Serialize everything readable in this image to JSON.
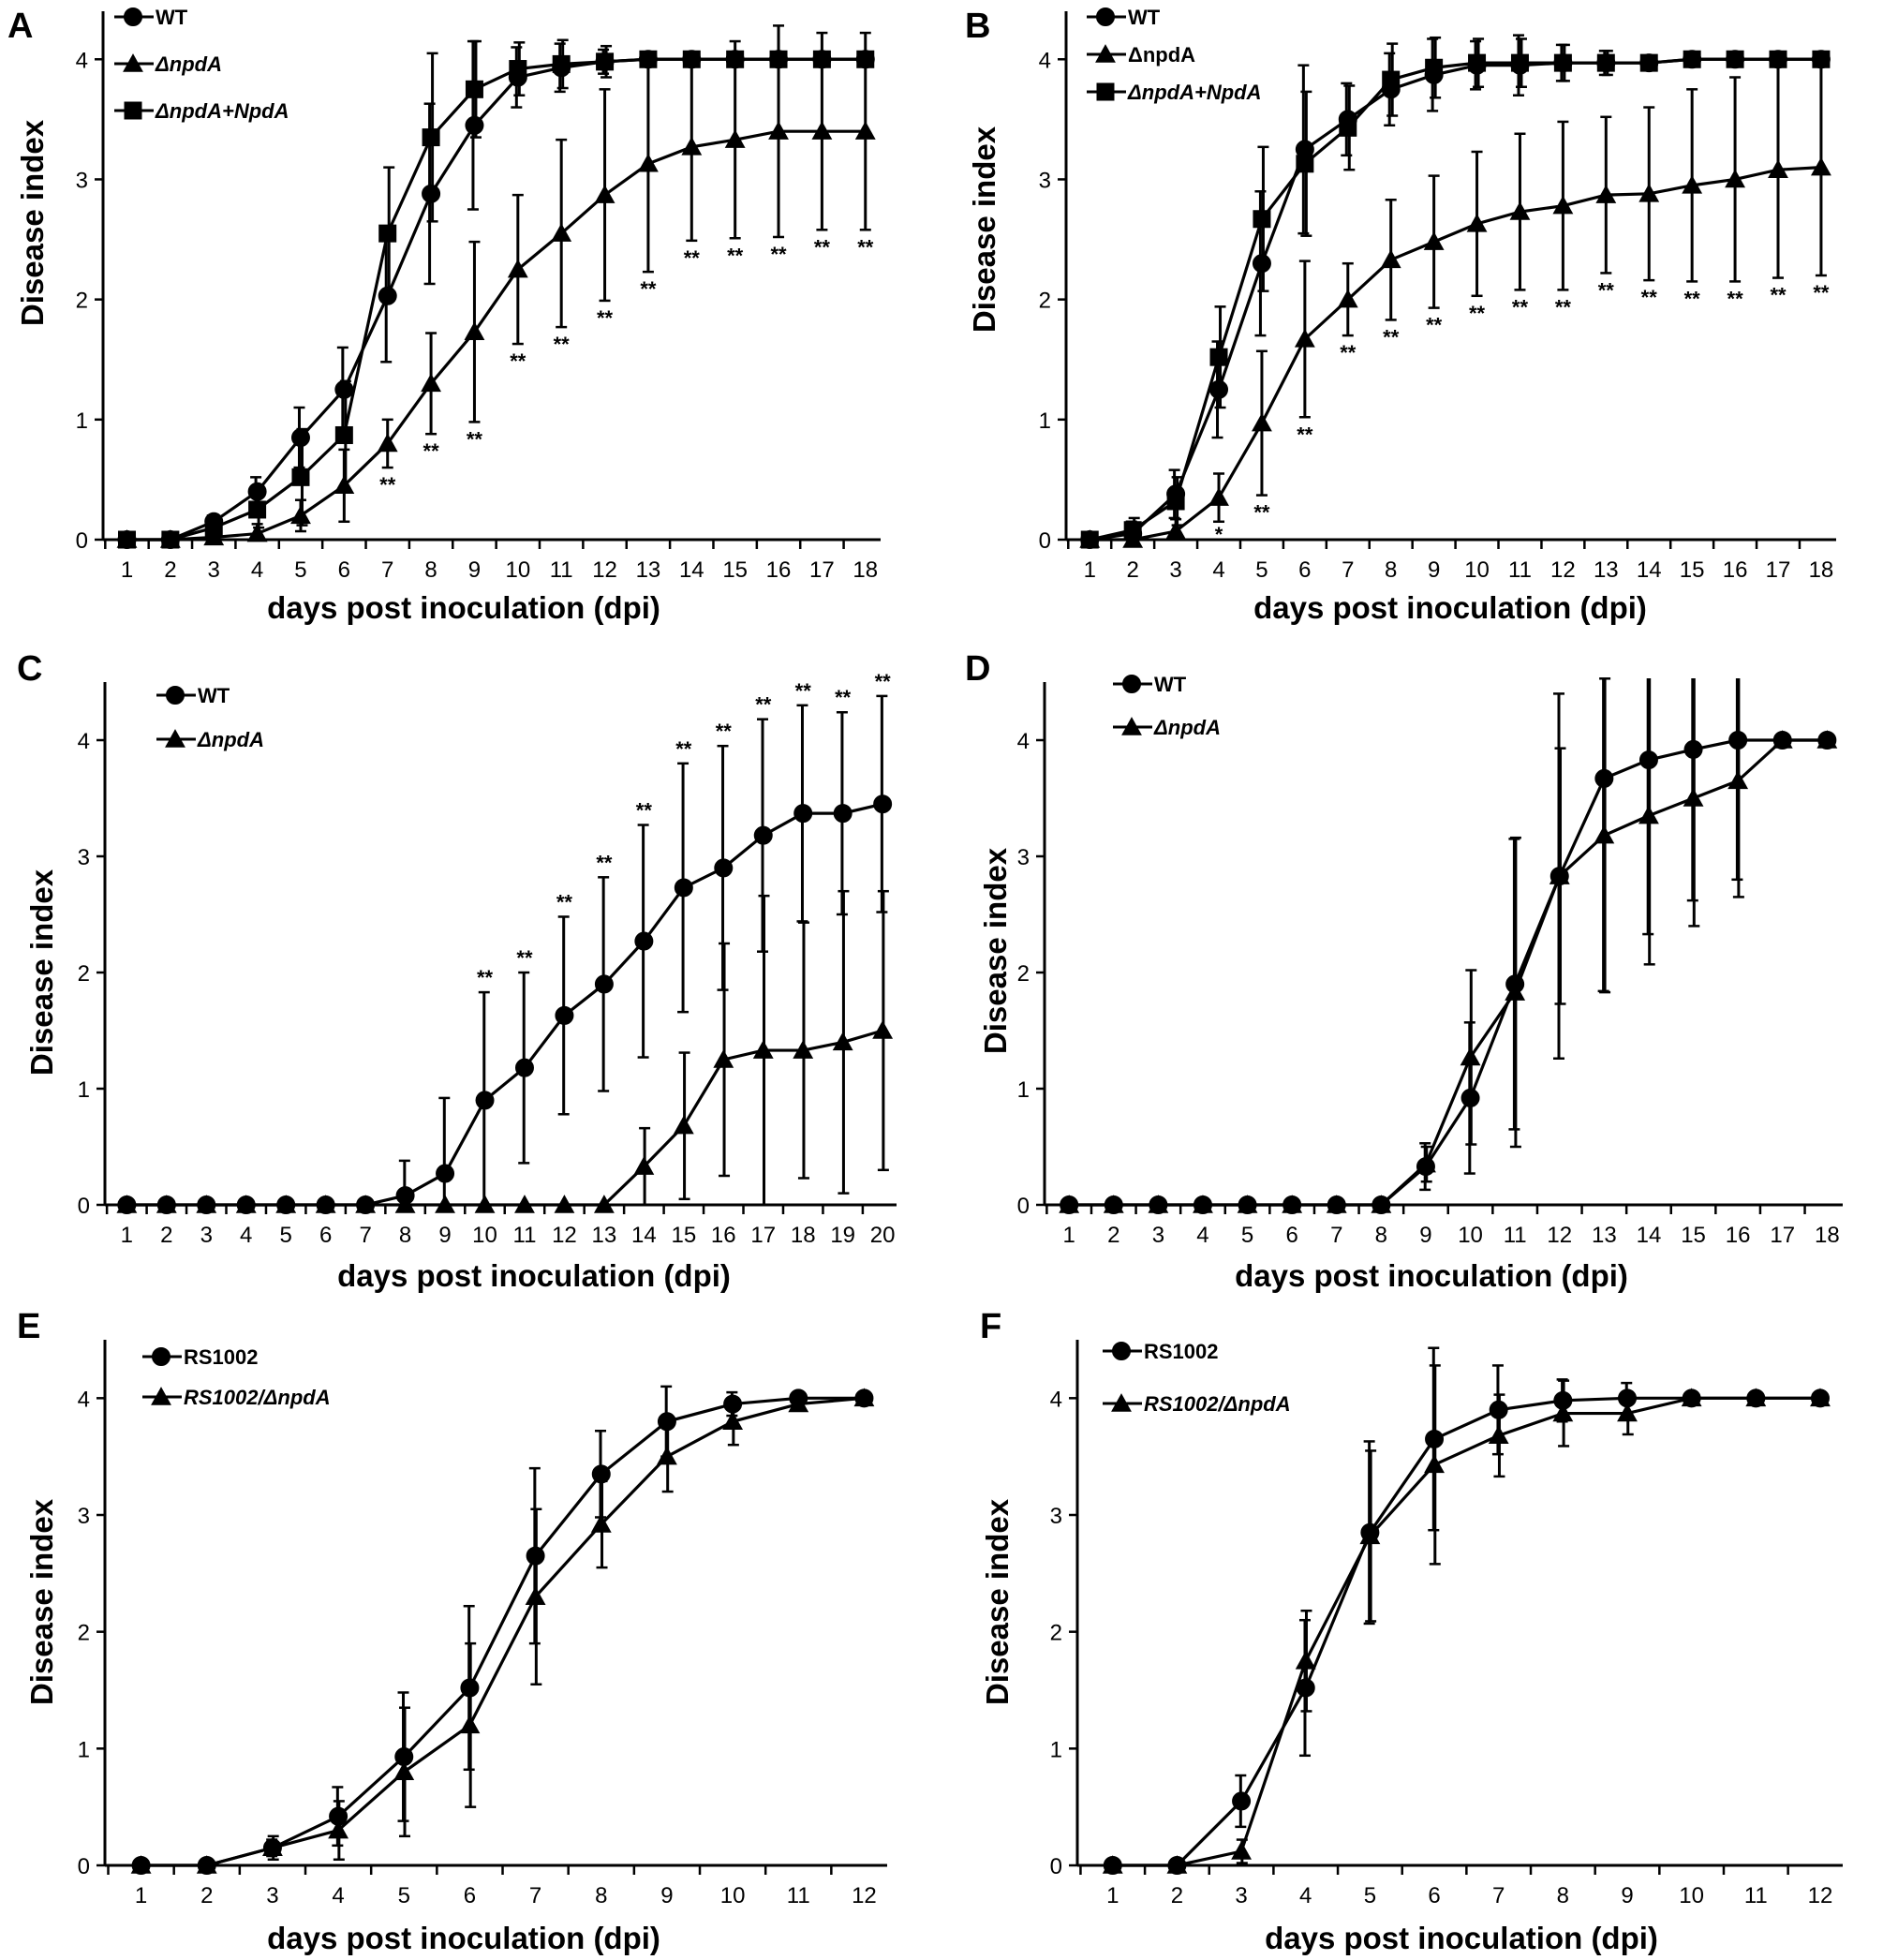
{
  "figure": {
    "axis_xlabel": "days post inoculation (dpi)",
    "axis_ylabel": "Disease index",
    "color": "#000000"
  },
  "chart_data": [
    {
      "panel": "A",
      "type": "line",
      "title": "",
      "xlabel": "days post inoculation (dpi)",
      "ylabel": "Disease index",
      "x": [
        1,
        2,
        3,
        4,
        5,
        6,
        7,
        8,
        9,
        10,
        11,
        12,
        13,
        14,
        15,
        16,
        17,
        18
      ],
      "xlim": [
        1,
        18
      ],
      "ylim": [
        0,
        4.4
      ],
      "yticks": [
        0,
        1,
        2,
        3,
        4
      ],
      "legend_position": "top-left",
      "series": [
        {
          "name": "WT",
          "italic": false,
          "marker": "circle",
          "values": [
            0,
            0,
            0.15,
            0.4,
            0.85,
            1.25,
            2.03,
            2.88,
            3.45,
            3.85,
            3.93,
            3.98,
            4,
            4,
            4,
            4,
            4,
            4
          ],
          "errors": [
            0,
            0,
            0.05,
            0.12,
            0.25,
            0.35,
            0.55,
            0.75,
            0.7,
            0.25,
            0.2,
            0.1,
            0,
            0,
            0,
            0,
            0,
            0
          ]
        },
        {
          "name": "ΔnpdA",
          "italic": true,
          "marker": "triangle",
          "values": [
            0,
            0,
            0.02,
            0.05,
            0.2,
            0.45,
            0.8,
            1.3,
            1.73,
            2.25,
            2.55,
            2.87,
            3.13,
            3.27,
            3.33,
            3.4,
            3.4,
            3.4
          ],
          "errors": [
            0,
            0,
            0.03,
            0.08,
            0.13,
            0.3,
            0.2,
            0.42,
            0.75,
            0.62,
            0.78,
            0.88,
            0.9,
            0.78,
            0.82,
            0.88,
            0.82,
            0.82
          ]
        },
        {
          "name": "ΔnpdA+NpdA",
          "italic": true,
          "marker": "square",
          "values": [
            0,
            0,
            0.1,
            0.25,
            0.52,
            0.87,
            2.55,
            3.35,
            3.75,
            3.92,
            3.96,
            3.98,
            4,
            4,
            4,
            4,
            4,
            4
          ],
          "errors": [
            0,
            0,
            0.07,
            0.15,
            0.4,
            0.45,
            0.55,
            0.7,
            0.4,
            0.22,
            0.2,
            0.13,
            0,
            0,
            0,
            0,
            0,
            0
          ]
        }
      ],
      "annotations": [
        {
          "x": 7,
          "text": "**"
        },
        {
          "x": 8,
          "text": "**"
        },
        {
          "x": 9,
          "text": "**"
        },
        {
          "x": 10,
          "text": "**"
        },
        {
          "x": 11,
          "text": "**"
        },
        {
          "x": 12,
          "text": "**"
        },
        {
          "x": 13,
          "text": "**"
        },
        {
          "x": 14,
          "text": "**"
        },
        {
          "x": 15,
          "text": "**"
        },
        {
          "x": 16,
          "text": "**"
        },
        {
          "x": 17,
          "text": "**"
        },
        {
          "x": 18,
          "text": "**"
        }
      ]
    },
    {
      "panel": "B",
      "type": "line",
      "title": "",
      "xlabel": "days post inoculation (dpi)",
      "ylabel": "Disease index",
      "x": [
        1,
        2,
        3,
        4,
        5,
        6,
        7,
        8,
        9,
        10,
        11,
        12,
        13,
        14,
        15,
        16,
        17,
        18
      ],
      "xlim": [
        1,
        18
      ],
      "ylim": [
        0,
        4.4
      ],
      "yticks": [
        0,
        1,
        2,
        3,
        4
      ],
      "legend_position": "top-left",
      "series": [
        {
          "name": "WT",
          "italic": false,
          "marker": "circle",
          "values": [
            0,
            0.05,
            0.38,
            1.25,
            2.3,
            3.25,
            3.5,
            3.75,
            3.87,
            3.95,
            3.95,
            3.97,
            3.97,
            3.97,
            4,
            4,
            4,
            4
          ],
          "errors": [
            0,
            0.1,
            0.2,
            0.4,
            0.6,
            0.7,
            0.3,
            0.3,
            0.3,
            0.2,
            0.25,
            0.15,
            0.1,
            0.05,
            0,
            0,
            0,
            0
          ]
        },
        {
          "name": "ΔnpdA",
          "italic": false,
          "marker": "triangle",
          "values": [
            0,
            0,
            0.07,
            0.35,
            0.97,
            1.67,
            2,
            2.33,
            2.48,
            2.63,
            2.73,
            2.78,
            2.87,
            2.88,
            2.95,
            3,
            3.08,
            3.1
          ],
          "errors": [
            0,
            0.05,
            0.1,
            0.2,
            0.6,
            0.65,
            0.3,
            0.5,
            0.55,
            0.6,
            0.65,
            0.7,
            0.65,
            0.72,
            0.8,
            0.85,
            0.9,
            0.9
          ]
        },
        {
          "name": "ΔnpdA+NpdA",
          "italic": true,
          "marker": "square",
          "values": [
            0,
            0.08,
            0.32,
            1.52,
            2.67,
            3.13,
            3.43,
            3.83,
            3.93,
            3.97,
            3.97,
            3.97,
            3.97,
            3.97,
            4,
            4,
            4,
            4
          ],
          "errors": [
            0,
            0.1,
            0.2,
            0.42,
            0.6,
            0.6,
            0.35,
            0.3,
            0.25,
            0.2,
            0.2,
            0.15,
            0.1,
            0.05,
            0,
            0,
            0,
            0
          ]
        }
      ],
      "annotations": [
        {
          "x": 4,
          "text": "*"
        },
        {
          "x": 5,
          "text": "**"
        },
        {
          "x": 6,
          "text": "**"
        },
        {
          "x": 7,
          "text": "**"
        },
        {
          "x": 8,
          "text": "**"
        },
        {
          "x": 9,
          "text": "**"
        },
        {
          "x": 10,
          "text": "**"
        },
        {
          "x": 11,
          "text": "**"
        },
        {
          "x": 12,
          "text": "**"
        },
        {
          "x": 13,
          "text": "**"
        },
        {
          "x": 14,
          "text": "**"
        },
        {
          "x": 15,
          "text": "**"
        },
        {
          "x": 16,
          "text": "**"
        },
        {
          "x": 17,
          "text": "**"
        },
        {
          "x": 18,
          "text": "**"
        }
      ]
    },
    {
      "panel": "C",
      "type": "line",
      "title": "",
      "xlabel": "days post inoculation (dpi)",
      "ylabel": "Disease index",
      "x": [
        1,
        2,
        3,
        4,
        5,
        6,
        7,
        8,
        9,
        10,
        11,
        12,
        13,
        14,
        15,
        16,
        17,
        18,
        19,
        20
      ],
      "xlim": [
        1,
        20
      ],
      "ylim": [
        0,
        4.5
      ],
      "yticks": [
        0,
        1,
        2,
        3,
        4
      ],
      "legend_position": "top-left",
      "series": [
        {
          "name": "WT",
          "italic": false,
          "marker": "circle",
          "values": [
            0,
            0,
            0,
            0,
            0,
            0,
            0,
            0.08,
            0.27,
            0.9,
            1.18,
            1.63,
            1.9,
            2.27,
            2.73,
            2.9,
            3.18,
            3.37,
            3.37,
            3.45
          ],
          "errors": [
            0,
            0,
            0,
            0,
            0,
            0,
            0,
            0.3,
            0.65,
            0.93,
            0.82,
            0.85,
            0.92,
            1,
            1.07,
            1.05,
            1,
            0.93,
            0.87,
            0.93
          ]
        },
        {
          "name": "ΔnpdA",
          "italic": true,
          "marker": "triangle",
          "values": [
            0,
            0,
            0,
            0,
            0,
            0,
            0,
            0,
            0,
            0,
            0,
            0,
            0,
            0.33,
            0.68,
            1.25,
            1.33,
            1.33,
            1.4,
            1.5
          ],
          "errors": [
            0,
            0,
            0,
            0,
            0,
            0,
            0,
            0,
            0,
            0,
            0,
            0,
            0,
            0.33,
            0.63,
            1,
            1.33,
            1.1,
            1.3,
            1.2
          ]
        }
      ],
      "annotations": [
        {
          "x": 10,
          "text": "**"
        },
        {
          "x": 11,
          "text": "**"
        },
        {
          "x": 12,
          "text": "**"
        },
        {
          "x": 13,
          "text": "**"
        },
        {
          "x": 14,
          "text": "**"
        },
        {
          "x": 15,
          "text": "**"
        },
        {
          "x": 16,
          "text": "**"
        },
        {
          "x": 17,
          "text": "**"
        },
        {
          "x": 18,
          "text": "**"
        },
        {
          "x": 19,
          "text": "**"
        },
        {
          "x": 20,
          "text": "**"
        }
      ]
    },
    {
      "panel": "D",
      "type": "line",
      "title": "",
      "xlabel": "days post inoculation (dpi)",
      "ylabel": "Disease index",
      "x": [
        1,
        2,
        3,
        4,
        5,
        6,
        7,
        8,
        9,
        10,
        11,
        12,
        13,
        14,
        15,
        16,
        17,
        18
      ],
      "xlim": [
        1,
        18
      ],
      "ylim": [
        0,
        4.5
      ],
      "yticks": [
        0,
        1,
        2,
        3,
        4
      ],
      "legend_position": "top-left",
      "series": [
        {
          "name": "WT",
          "italic": false,
          "marker": "circle",
          "values": [
            0,
            0,
            0,
            0,
            0,
            0,
            0,
            0,
            0.33,
            0.92,
            1.9,
            2.83,
            3.67,
            3.83,
            3.92,
            4,
            4,
            4
          ],
          "errors": [
            0,
            0,
            0,
            0,
            0,
            0,
            0,
            0,
            0.2,
            0.65,
            1.25,
            1.57,
            1.83,
            1.5,
            1.3,
            1.2,
            0,
            0
          ]
        },
        {
          "name": "ΔnpdA",
          "italic": true,
          "marker": "triangle",
          "values": [
            0,
            0,
            0,
            0,
            0,
            0,
            0,
            0,
            0.35,
            1.27,
            1.83,
            2.83,
            3.18,
            3.35,
            3.5,
            3.65,
            4,
            4
          ],
          "errors": [
            0,
            0,
            0,
            0,
            0,
            0,
            0,
            0,
            0.15,
            0.75,
            1.33,
            1.1,
            1.35,
            1.28,
            1.1,
            1,
            0,
            0
          ]
        }
      ],
      "annotations": []
    },
    {
      "panel": "E",
      "type": "line",
      "title": "",
      "xlabel": "days post inoculation (dpi)",
      "ylabel": "Disease index",
      "x": [
        1,
        2,
        3,
        4,
        5,
        6,
        7,
        8,
        9,
        10,
        11,
        12
      ],
      "xlim": [
        1,
        12
      ],
      "ylim": [
        0,
        4.5
      ],
      "yticks": [
        0,
        1,
        2,
        3,
        4
      ],
      "legend_position": "top-left",
      "series": [
        {
          "name": "RS1002",
          "italic": false,
          "marker": "circle",
          "values": [
            0,
            0,
            0.15,
            0.42,
            0.93,
            1.52,
            2.65,
            3.35,
            3.8,
            3.95,
            4,
            4
          ],
          "errors": [
            0,
            0,
            0.07,
            0.25,
            0.55,
            0.7,
            0.75,
            0.37,
            0.3,
            0.1,
            0.03,
            0
          ]
        },
        {
          "name": "RS1002/ΔnpdA",
          "italic": true,
          "marker": "triangle",
          "values": [
            0,
            0,
            0.15,
            0.3,
            0.8,
            1.2,
            2.3,
            2.92,
            3.5,
            3.8,
            3.95,
            4
          ],
          "errors": [
            0,
            0,
            0.1,
            0.25,
            0.55,
            0.7,
            0.75,
            0.37,
            0.3,
            0.2,
            0.05,
            0
          ]
        }
      ],
      "annotations": []
    },
    {
      "panel": "F",
      "type": "line",
      "title": "",
      "xlabel": "days post inoculation (dpi)",
      "ylabel": "Disease index",
      "x": [
        1,
        2,
        3,
        4,
        5,
        6,
        7,
        8,
        9,
        10,
        11,
        12
      ],
      "xlim": [
        1,
        12
      ],
      "ylim": [
        0,
        4.5
      ],
      "yticks": [
        0,
        1,
        2,
        3,
        4
      ],
      "legend_position": "top-left",
      "series": [
        {
          "name": "RS1002",
          "italic": false,
          "marker": "circle",
          "values": [
            0,
            0,
            0.55,
            1.52,
            2.85,
            3.65,
            3.9,
            3.98,
            4,
            4,
            4,
            4
          ],
          "errors": [
            0,
            0,
            0.22,
            0.58,
            0.78,
            0.78,
            0.38,
            0.18,
            0.13,
            0,
            0,
            0
          ]
        },
        {
          "name": "RS1002/ΔnpdA",
          "italic": true,
          "marker": "triangle",
          "values": [
            0,
            0,
            0.12,
            1.75,
            2.82,
            3.43,
            3.68,
            3.87,
            3.87,
            4,
            4,
            4
          ],
          "errors": [
            0,
            0,
            0.1,
            0.43,
            0.73,
            0.85,
            0.35,
            0.28,
            0.18,
            0,
            0,
            0
          ]
        }
      ],
      "annotations": []
    }
  ]
}
